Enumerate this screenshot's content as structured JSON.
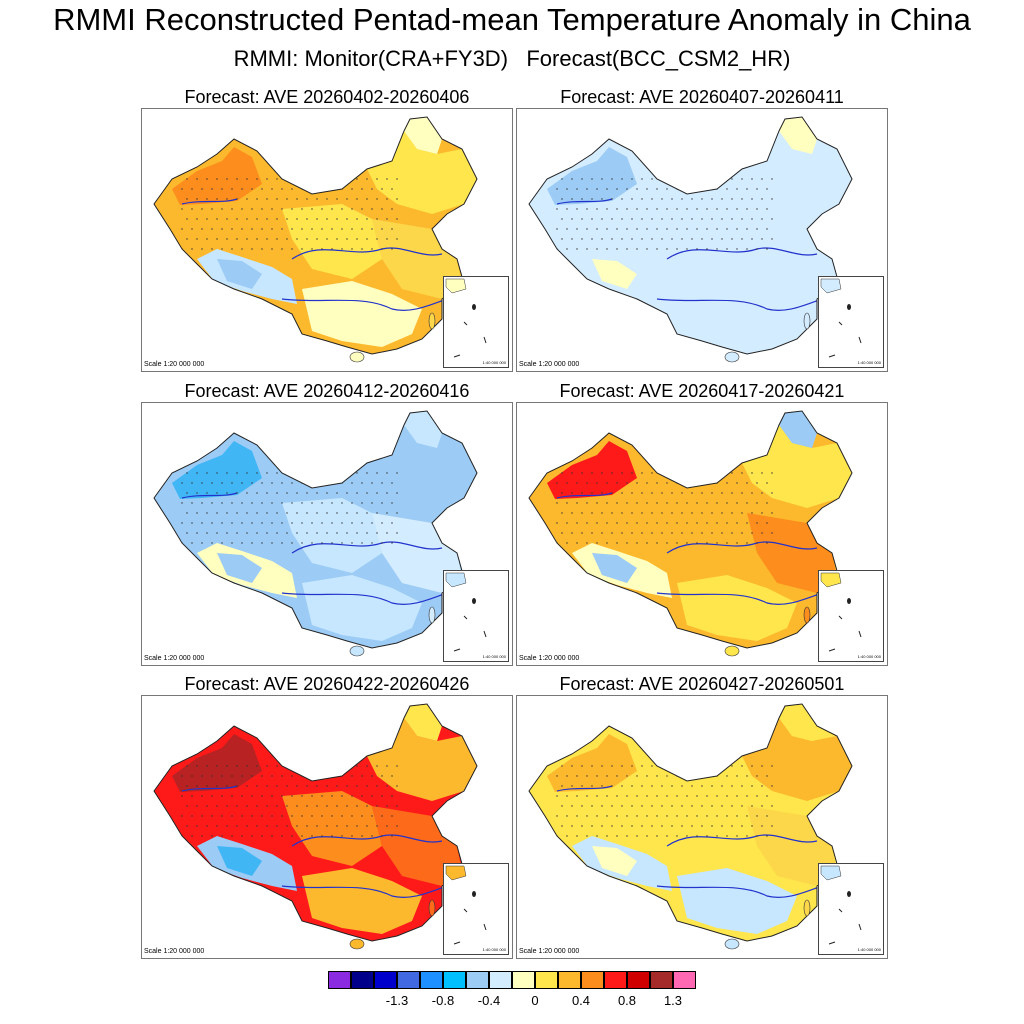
{
  "title": "RMMI Reconstructed Pentad-mean Temperature Anomaly in China",
  "subtitle": "RMMI: Monitor(CRA+FY3D)   Forecast(BCC_CSM2_HR)",
  "panels": [
    {
      "title": "Forecast: AVE 20260402-20260406",
      "scale": "Scale 1:20 000 000",
      "inset_label": "1:40 000 000",
      "regions": {
        "nw": "#fdb92e",
        "nw_core": "#fd8d1c",
        "ne": "#ffe64d",
        "ne_tip": "#ffffc0",
        "tibet": "#c6e7ff",
        "tibet_core": "#9ccbf5",
        "center": "#ffe64d",
        "south": "#ffffc0",
        "east": "#fdd74a"
      }
    },
    {
      "title": "Forecast: AVE 20260407-20260411",
      "scale": "Scale 1:20 000 000",
      "inset_label": "1:40 000 000",
      "regions": {
        "nw": "#d4ecff",
        "nw_core": "#9ccbf5",
        "ne": "#d4ecff",
        "ne_tip": "#ffffc0",
        "tibet": "#d4ecff",
        "tibet_core": "#ffffc0",
        "center": "#d4ecff",
        "south": "#d4ecff",
        "east": "#d4ecff"
      }
    },
    {
      "title": "Forecast: AVE 20260412-20260416",
      "scale": "Scale 1:20 000 000",
      "inset_label": "1:40 000 000",
      "regions": {
        "nw": "#9ccbf5",
        "nw_core": "#41b6f5",
        "ne": "#9ccbf5",
        "ne_tip": "#c6e7ff",
        "tibet": "#ffffc0",
        "tibet_core": "#9ccbf5",
        "center": "#c6e7ff",
        "south": "#c6e7ff",
        "east": "#d4ecff"
      }
    },
    {
      "title": "Forecast: AVE 20260417-20260421",
      "scale": "Scale 1:20 000 000",
      "inset_label": "1:40 000 000",
      "regions": {
        "nw": "#fdb92e",
        "nw_core": "#ff1a1a",
        "ne": "#ffe64d",
        "ne_tip": "#9ccbf5",
        "tibet": "#ffffc0",
        "tibet_core": "#9ccbf5",
        "center": "#fdb92e",
        "south": "#ffe64d",
        "east": "#fd8d1c"
      }
    },
    {
      "title": "Forecast: AVE 20260422-20260426",
      "scale": "Scale 1:20 000 000",
      "inset_label": "1:40 000 000",
      "regions": {
        "nw": "#ff1a1a",
        "nw_core": "#b82222",
        "ne": "#fdb92e",
        "ne_tip": "#ffe64d",
        "tibet": "#9ccbf5",
        "tibet_core": "#41b6f5",
        "center": "#fd8d1c",
        "south": "#fdb92e",
        "east": "#fd6a1a"
      }
    },
    {
      "title": "Forecast: AVE 20260427-20260501",
      "scale": "Scale 1:20 000 000",
      "inset_label": "1:40 000 000",
      "regions": {
        "nw": "#ffe64d",
        "nw_core": "#fdb92e",
        "ne": "#fdb92e",
        "ne_tip": "#ffe64d",
        "tibet": "#c6e7ff",
        "tibet_core": "#ffffc0",
        "center": "#ffe64d",
        "south": "#c6e7ff",
        "east": "#fdd74a"
      }
    }
  ],
  "legend": {
    "colors": [
      "#8a2be2",
      "#00008b",
      "#0000cd",
      "#4169e1",
      "#1e90ff",
      "#00bfff",
      "#9ccbf5",
      "#d4ecff",
      "#ffffc0",
      "#ffe64d",
      "#fdb92e",
      "#fd8d1c",
      "#ff1a1a",
      "#d00000",
      "#a52a2a",
      "#ff69b4"
    ],
    "ticks": [
      "-1.3",
      "-0.8",
      "-0.4",
      "0",
      "0.4",
      "0.8",
      "1.3"
    ]
  }
}
